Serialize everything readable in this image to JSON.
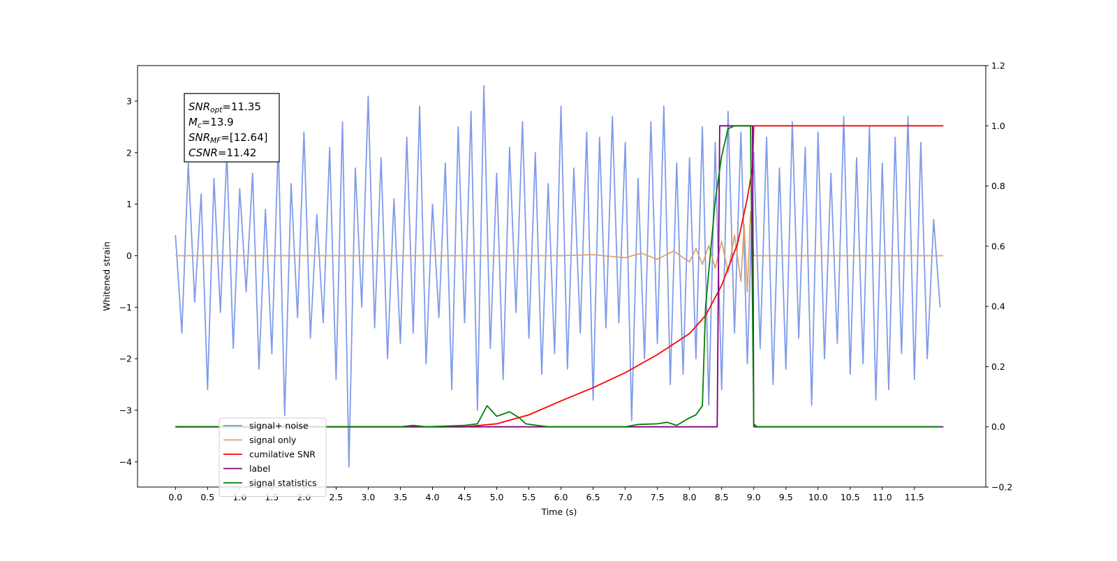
{
  "chart_data": {
    "type": "line",
    "xlabel": "Time (s)",
    "ylabel": "Whitened strain",
    "xlim": [
      -0.59,
      12.61
    ],
    "ylim": [
      -4.49,
      3.69
    ],
    "y2lim": [
      -0.2,
      1.2
    ],
    "xticks": [
      {
        "value": 0,
        "label": "0.0"
      },
      0.5,
      {
        "value": 1,
        "label": "1.0"
      },
      1.5,
      {
        "value": 2,
        "label": "2.0"
      },
      2.5,
      {
        "value": 3,
        "label": "3.0"
      },
      3.5,
      {
        "value": 4,
        "label": "4.0"
      },
      4.5,
      {
        "value": 5,
        "label": "5.0"
      },
      5.5,
      {
        "value": 6,
        "label": "6.0"
      },
      6.5,
      {
        "value": 7,
        "label": "7.0"
      },
      7.5,
      {
        "value": 8,
        "label": "8.0"
      },
      8.5,
      {
        "value": 9,
        "label": "9.0"
      },
      9.5,
      {
        "value": 10,
        "label": "10.0"
      },
      10.5,
      {
        "value": 11,
        "label": "11.0"
      },
      11.5
    ],
    "yticks": [
      {
        "value": -4,
        "label": "−4"
      },
      {
        "value": -3,
        "label": "−3"
      },
      {
        "value": -2,
        "label": "−2"
      },
      {
        "value": -1,
        "label": "−1"
      },
      0,
      1,
      2,
      3
    ],
    "y2ticks": [
      {
        "value": -0.2,
        "label": "−0.2"
      },
      {
        "value": 0,
        "label": "0.0"
      },
      0.2,
      0.4,
      0.6,
      0.8,
      {
        "value": 1,
        "label": "1.0"
      },
      1.2
    ],
    "legend": "lower left",
    "annotation": [
      {
        "main": "SNR",
        "sub": "opt",
        "text": "=11.35"
      },
      {
        "main": "M",
        "sub": "c",
        "text": "=13.9"
      },
      {
        "main": "SNR",
        "sub": "MF",
        "text": "=[12.64]"
      },
      {
        "main": "CSNR",
        "text": "=11.42"
      }
    ],
    "series": [
      {
        "name": "signal+ noise",
        "color": "#7896e8",
        "x": [
          0,
          0.1,
          0.2,
          0.3,
          0.4,
          0.5,
          0.6,
          0.7,
          0.8,
          0.9,
          1,
          1.1,
          1.2,
          1.3,
          1.4,
          1.5,
          1.6,
          1.7,
          1.8,
          1.9,
          2,
          2.1,
          2.2,
          2.3,
          2.4,
          2.5,
          2.6,
          2.7,
          2.8,
          2.9,
          3,
          3.1,
          3.2,
          3.3,
          3.4,
          3.5,
          3.6,
          3.7,
          3.8,
          3.9,
          4,
          4.1,
          4.2,
          4.3,
          4.4,
          4.5,
          4.6,
          4.7,
          4.8,
          4.9,
          5,
          5.1,
          5.2,
          5.3,
          5.4,
          5.5,
          5.6,
          5.7,
          5.8,
          5.9,
          6,
          6.1,
          6.2,
          6.3,
          6.4,
          6.5,
          6.6,
          6.7,
          6.8,
          6.9,
          7,
          7.1,
          7.2,
          7.3,
          7.4,
          7.5,
          7.6,
          7.7,
          7.8,
          7.9,
          8,
          8.1,
          8.2,
          8.3,
          8.4,
          8.5,
          8.6,
          8.7,
          8.8,
          8.9,
          9,
          9.1,
          9.2,
          9.3,
          9.4,
          9.5,
          9.6,
          9.7,
          9.8,
          9.9,
          10,
          10.1,
          10.2,
          10.3,
          10.4,
          10.5,
          10.6,
          10.7,
          10.8,
          10.9,
          11,
          11.1,
          11.2,
          11.3,
          11.4,
          11.5,
          11.6,
          11.7,
          11.8,
          11.9
        ],
        "values": [
          0.4,
          -1.5,
          1.8,
          -0.9,
          1.2,
          -2.6,
          1.5,
          -1.1,
          2.0,
          -1.8,
          1.3,
          -0.7,
          1.6,
          -2.2,
          0.9,
          -1.9,
          2.2,
          -3.1,
          1.4,
          -1.2,
          2.4,
          -1.6,
          0.8,
          -1.3,
          2.1,
          -2.4,
          2.6,
          -4.1,
          1.7,
          -1.0,
          3.1,
          -1.4,
          1.9,
          -2.0,
          1.1,
          -1.7,
          2.3,
          -1.5,
          2.9,
          -2.1,
          1.0,
          -1.2,
          1.8,
          -2.6,
          2.5,
          -1.3,
          2.8,
          -3.0,
          3.3,
          -1.8,
          1.6,
          -2.4,
          2.1,
          -1.1,
          2.6,
          -1.6,
          2.0,
          -2.3,
          1.4,
          -1.9,
          2.9,
          -2.2,
          1.7,
          -1.5,
          2.4,
          -2.8,
          2.3,
          -1.4,
          2.7,
          -1.3,
          2.2,
          -3.2,
          1.5,
          -2.0,
          2.6,
          -1.7,
          2.9,
          -2.5,
          1.8,
          -2.3,
          1.9,
          -2.0,
          2.5,
          -2.9,
          2.2,
          -2.6,
          2.8,
          -1.5,
          2.4,
          -2.1,
          2.0,
          -1.8,
          2.3,
          -2.5,
          1.7,
          -2.2,
          2.6,
          -1.6,
          2.1,
          -2.9,
          2.4,
          -2.0,
          1.6,
          -1.7,
          2.7,
          -2.3,
          1.9,
          -2.1,
          2.5,
          -2.8,
          1.8,
          -2.6,
          2.3,
          -1.9,
          2.7,
          -2.4,
          2.2,
          -2.0,
          0.7,
          -1.0
        ]
      },
      {
        "name": "signal only",
        "color": "#d9a066",
        "x": [
          0,
          6.0,
          6.5,
          7.0,
          7.25,
          7.5,
          7.75,
          8.0,
          8.1,
          8.2,
          8.3,
          8.4,
          8.5,
          8.6,
          8.7,
          8.8,
          8.85,
          8.9,
          8.95,
          9.0,
          11.95
        ],
        "values": [
          0,
          0,
          0.02,
          -0.04,
          0.05,
          -0.07,
          0.09,
          -0.12,
          0.14,
          -0.17,
          0.2,
          -0.24,
          0.28,
          -0.33,
          0.4,
          -0.5,
          0.6,
          -0.7,
          0.85,
          0,
          0
        ]
      },
      {
        "name": "cumilative SNR",
        "color": "#ff0000",
        "axis": "y2",
        "x": [
          0,
          4.5,
          5.0,
          5.5,
          6.0,
          6.5,
          7.0,
          7.5,
          8.0,
          8.25,
          8.5,
          8.75,
          8.9,
          8.98,
          9.0,
          11.95
        ],
        "values": [
          0,
          0,
          0.01,
          0.04,
          0.086,
          0.13,
          0.18,
          0.24,
          0.31,
          0.37,
          0.47,
          0.61,
          0.76,
          0.86,
          1.0,
          1.0
        ]
      },
      {
        "name": "label",
        "color": "#800080",
        "axis": "y2",
        "x": [
          0,
          8.43,
          8.47,
          8.98,
          9.0,
          11.95
        ],
        "values": [
          0,
          0,
          1,
          1,
          0,
          0
        ]
      },
      {
        "name": "signal statistics",
        "color": "#008000",
        "axis": "y2",
        "x": [
          0,
          3.5,
          3.7,
          3.9,
          4.5,
          4.7,
          4.85,
          5.0,
          5.2,
          5.35,
          5.45,
          5.8,
          7.0,
          7.2,
          7.5,
          7.65,
          7.8,
          8.0,
          8.1,
          8.2,
          8.25,
          8.4,
          8.5,
          8.6,
          8.7,
          8.95,
          9.0,
          9.05,
          11.9
        ],
        "values": [
          0,
          0,
          0.005,
          0,
          0.005,
          0.01,
          0.07,
          0.035,
          0.05,
          0.03,
          0.01,
          0,
          0,
          0.008,
          0.01,
          0.015,
          0.005,
          0.03,
          0.04,
          0.07,
          0.4,
          0.75,
          0.9,
          0.99,
          1.0,
          1.0,
          0.01,
          0,
          0
        ]
      }
    ]
  }
}
